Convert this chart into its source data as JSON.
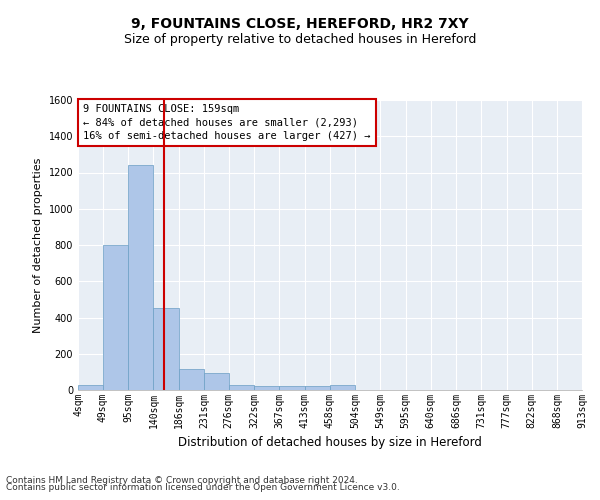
{
  "title": "9, FOUNTAINS CLOSE, HEREFORD, HR2 7XY",
  "subtitle": "Size of property relative to detached houses in Hereford",
  "xlabel": "Distribution of detached houses by size in Hereford",
  "ylabel": "Number of detached properties",
  "bin_edges": [
    4,
    49,
    95,
    140,
    186,
    231,
    276,
    322,
    367,
    413,
    458,
    504,
    549,
    595,
    640,
    686,
    731,
    777,
    822,
    868,
    913
  ],
  "bin_labels": [
    "4sqm",
    "49sqm",
    "95sqm",
    "140sqm",
    "186sqm",
    "231sqm",
    "276sqm",
    "322sqm",
    "367sqm",
    "413sqm",
    "458sqm",
    "504sqm",
    "549sqm",
    "595sqm",
    "640sqm",
    "686sqm",
    "731sqm",
    "777sqm",
    "822sqm",
    "868sqm",
    "913sqm"
  ],
  "counts": [
    30,
    800,
    1240,
    450,
    115,
    95,
    30,
    20,
    20,
    20,
    25,
    0,
    0,
    0,
    0,
    0,
    0,
    0,
    0,
    0
  ],
  "bar_color": "#aec6e8",
  "bar_edge_color": "#6a9ec4",
  "property_size": 159,
  "vline_color": "#cc0000",
  "annotation_text": "9 FOUNTAINS CLOSE: 159sqm\n← 84% of detached houses are smaller (2,293)\n16% of semi-detached houses are larger (427) →",
  "annotation_box_color": "#ffffff",
  "annotation_box_edge": "#cc0000",
  "ylim": [
    0,
    1600
  ],
  "yticks": [
    0,
    200,
    400,
    600,
    800,
    1000,
    1200,
    1400,
    1600
  ],
  "bg_color": "#e8eef5",
  "grid_color": "#ffffff",
  "fig_bg_color": "#ffffff",
  "footer1": "Contains HM Land Registry data © Crown copyright and database right 2024.",
  "footer2": "Contains public sector information licensed under the Open Government Licence v3.0.",
  "title_fontsize": 10,
  "subtitle_fontsize": 9,
  "annotation_fontsize": 7.5,
  "axis_tick_fontsize": 7,
  "xlabel_fontsize": 8.5,
  "ylabel_fontsize": 8,
  "footer_fontsize": 6.5
}
